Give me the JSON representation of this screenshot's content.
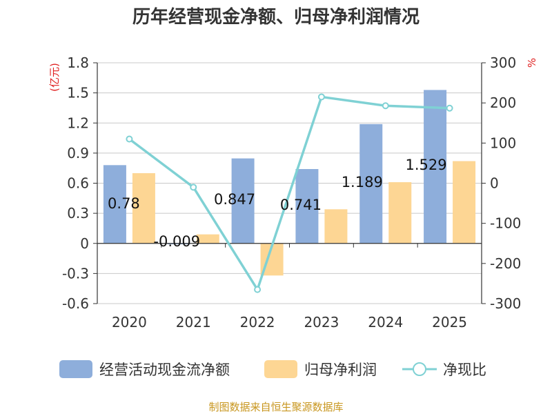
{
  "chart_data": {
    "type": "bar",
    "title": "历年经营现金净额、归母净利润情况",
    "categories": [
      "2020",
      "2021",
      "2022",
      "2023",
      "2024",
      "2025"
    ],
    "series": [
      {
        "name": "经营活动现金流净额",
        "axis": "left",
        "type": "bar",
        "color": "#8eaedb",
        "values": [
          0.78,
          -0.009,
          0.847,
          0.741,
          1.189,
          1.529
        ]
      },
      {
        "name": "归母净利润",
        "axis": "left",
        "type": "bar",
        "color": "#fdd694",
        "values": [
          0.7,
          0.09,
          -0.32,
          0.34,
          0.61,
          0.82
        ]
      },
      {
        "name": "净现比",
        "axis": "right",
        "type": "line",
        "color": "#7fd1d4",
        "values": [
          110,
          -10,
          -265,
          215,
          193,
          187
        ]
      }
    ],
    "data_labels": [
      "0.78",
      "-0.009",
      "0.847",
      "0.741",
      "1.189",
      "1.529"
    ],
    "y_left": {
      "unit": "(亿元)",
      "ylim": [
        -0.6,
        1.8
      ],
      "ticks": [
        "-0.6",
        "-0.3",
        "0",
        "0.3",
        "0.6",
        "0.9",
        "1.2",
        "1.5",
        "1.8"
      ],
      "tick_values": [
        -0.6,
        -0.3,
        0,
        0.3,
        0.6,
        0.9,
        1.2,
        1.5,
        1.8
      ]
    },
    "y_right": {
      "unit": "%",
      "ylim": [
        -300,
        300
      ],
      "ticks": [
        "-300",
        "-200",
        "-100",
        "0",
        "100",
        "200",
        "300"
      ],
      "tick_values": [
        -300,
        -200,
        -100,
        0,
        100,
        200,
        300
      ]
    },
    "grid": true,
    "legend_position": "bottom"
  },
  "source": "制图数据来自恒生聚源数据库"
}
